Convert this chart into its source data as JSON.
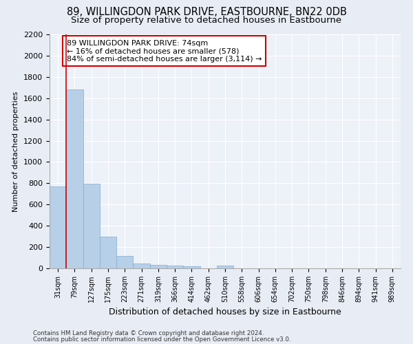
{
  "title": "89, WILLINGDON PARK DRIVE, EASTBOURNE, BN22 0DB",
  "subtitle": "Size of property relative to detached houses in Eastbourne",
  "xlabel": "Distribution of detached houses by size in Eastbourne",
  "ylabel": "Number of detached properties",
  "footer1": "Contains HM Land Registry data © Crown copyright and database right 2024.",
  "footer2": "Contains public sector information licensed under the Open Government Licence v3.0.",
  "bar_labels": [
    "31sqm",
    "79sqm",
    "127sqm",
    "175sqm",
    "223sqm",
    "271sqm",
    "319sqm",
    "366sqm",
    "414sqm",
    "462sqm",
    "510sqm",
    "558sqm",
    "606sqm",
    "654sqm",
    "702sqm",
    "750sqm",
    "798sqm",
    "846sqm",
    "894sqm",
    "941sqm",
    "989sqm"
  ],
  "bar_values": [
    770,
    1680,
    795,
    300,
    115,
    45,
    35,
    28,
    22,
    0,
    25,
    0,
    0,
    0,
    0,
    0,
    0,
    0,
    0,
    0,
    0
  ],
  "bar_color": "#b8cfe8",
  "bar_edge_color": "#7aadd4",
  "vline_x": 0.5,
  "vline_color": "#cc0000",
  "annotation_text": "89 WILLINGDON PARK DRIVE: 74sqm\n← 16% of detached houses are smaller (578)\n84% of semi-detached houses are larger (3,114) →",
  "annotation_box_color": "#ffffff",
  "annotation_box_edge": "#cc0000",
  "ylim": [
    0,
    2200
  ],
  "yticks": [
    0,
    200,
    400,
    600,
    800,
    1000,
    1200,
    1400,
    1600,
    1800,
    2000,
    2200
  ],
  "bg_color": "#e8edf5",
  "plot_bg_color": "#edf1f8",
  "title_fontsize": 10.5,
  "subtitle_fontsize": 9.5,
  "ylabel_fontsize": 8,
  "xlabel_fontsize": 9
}
